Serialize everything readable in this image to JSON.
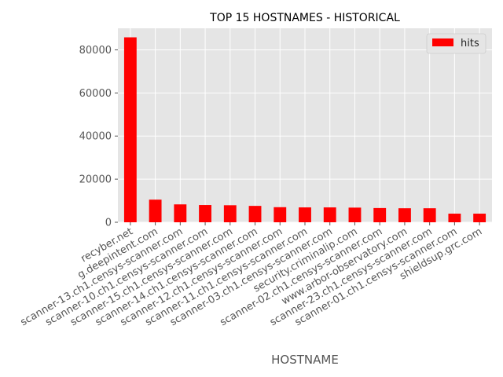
{
  "chart_data": {
    "type": "bar",
    "title": "TOP 15 HOSTNAMES - HISTORICAL",
    "xlabel": "HOSTNAME",
    "ylabel": "",
    "categories": [
      "recyber.net",
      "g.deepintent.com",
      "scanner-13.ch1.censys-scanner.com",
      "scanner-10.ch1.censys-scanner.com",
      "scanner-15.ch1.censys-scanner.com",
      "scanner-14.ch1.censys-scanner.com",
      "scanner-12.ch1.censys-scanner.com",
      "scanner-11.ch1.censys-scanner.com",
      "scanner-03.ch1.censys-scanner.com",
      "security.criminalip.com",
      "scanner-02.ch1.censys-scanner.com",
      "www.arbor-observatory.com",
      "scanner-23.ch1.censys-scanner.com",
      "scanner-01.ch1.censys-scanner.com",
      "shieldsup.grc.com"
    ],
    "series": [
      {
        "name": "hits",
        "color": "#ff0000",
        "values": [
          85800,
          10500,
          8300,
          8000,
          7900,
          7600,
          7000,
          6900,
          6900,
          6800,
          6600,
          6500,
          6500,
          4000,
          4000
        ]
      }
    ],
    "ylim": [
      0,
      90000
    ],
    "yticks": [
      0,
      20000,
      40000,
      60000,
      80000
    ],
    "grid": true,
    "legend": "top-right",
    "style": {
      "plot_background": "#e5e5e5",
      "grid_color": "#ffffff",
      "bar_color": "#ff0000"
    }
  }
}
